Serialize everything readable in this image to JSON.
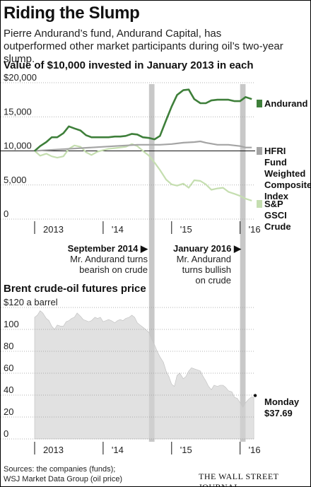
{
  "title": "Riding the Slump",
  "subtitle": "Pierre Andurand’s fund, Andurand Capital, has outperformed other market participants during oil’s two-year slump.",
  "source": [
    "Sources: the companies (funds);",
    "WSJ Market Data Group (oil price)"
  ],
  "brand": "THE WALL STREET JOURNAL.",
  "annotations": {
    "sept_2014": {
      "date": "September 2014",
      "marker": "▶",
      "lines": [
        "Mr. Andurand turns",
        "bearish on crude"
      ]
    },
    "jan_2016": {
      "date": "January 2016",
      "marker": "▶",
      "lines": [
        "Mr. Andurand",
        "turns bullish",
        "on crude"
      ]
    },
    "brent_end": {
      "lines": [
        "Monday",
        "$37.69"
      ]
    }
  },
  "colors": {
    "andurand": "#3e7f3a",
    "hfri": "#a4a4a4",
    "sp_gsci": "#c5deb0",
    "brent_fill": "#dcdcdc",
    "shade": "#c8c8c8"
  },
  "chart_data": [
    {
      "type": "line",
      "title": "Value of $10,000 invested in January 2013 in each",
      "ylim": [
        0,
        20000
      ],
      "yticks": [
        0,
        5000,
        10000,
        15000,
        20000
      ],
      "ytick_labels": [
        "0",
        "5,000",
        "10,000",
        "15,000",
        "$20,000"
      ],
      "xlim": [
        2013.0,
        2016.22
      ],
      "xtick_labels": [
        "2013",
        "'14",
        "'15",
        "'16"
      ],
      "xtick_values": [
        2013,
        2014,
        2015,
        2016
      ],
      "reference_line": 10000,
      "shaded_periods": [
        [
          2014.67,
          2014.75
        ],
        [
          2016.0,
          2016.08
        ]
      ],
      "series": [
        {
          "name": "Andurand",
          "color": "#3e7f3a",
          "points": [
            [
              2013.0,
              10000
            ],
            [
              2013.08,
              10700
            ],
            [
              2013.17,
              11300
            ],
            [
              2013.25,
              12000
            ],
            [
              2013.33,
              12000
            ],
            [
              2013.42,
              12600
            ],
            [
              2013.5,
              13600
            ],
            [
              2013.58,
              13300
            ],
            [
              2013.67,
              13000
            ],
            [
              2013.75,
              12300
            ],
            [
              2013.83,
              12000
            ],
            [
              2013.92,
              12000
            ],
            [
              2014.0,
              12000
            ],
            [
              2014.08,
              12000
            ],
            [
              2014.17,
              12100
            ],
            [
              2014.25,
              12100
            ],
            [
              2014.33,
              12200
            ],
            [
              2014.42,
              12500
            ],
            [
              2014.5,
              12400
            ],
            [
              2014.58,
              12000
            ],
            [
              2014.67,
              11900
            ],
            [
              2014.75,
              11700
            ],
            [
              2014.83,
              12200
            ],
            [
              2014.92,
              14500
            ],
            [
              2015.0,
              16500
            ],
            [
              2015.08,
              18200
            ],
            [
              2015.17,
              18900
            ],
            [
              2015.25,
              19000
            ],
            [
              2015.33,
              17600
            ],
            [
              2015.42,
              17000
            ],
            [
              2015.5,
              17000
            ],
            [
              2015.58,
              17400
            ],
            [
              2015.67,
              17500
            ],
            [
              2015.75,
              17500
            ],
            [
              2015.83,
              17500
            ],
            [
              2015.92,
              17300
            ],
            [
              2016.0,
              17300
            ],
            [
              2016.08,
              17900
            ],
            [
              2016.17,
              17600
            ]
          ]
        },
        {
          "name": "HFRI Fund Weighted Composite Index",
          "color": "#a4a4a4",
          "points": [
            [
              2013.0,
              10000
            ],
            [
              2013.17,
              10100
            ],
            [
              2013.33,
              10200
            ],
            [
              2013.5,
              10300
            ],
            [
              2013.67,
              10400
            ],
            [
              2013.83,
              10500
            ],
            [
              2014.0,
              10600
            ],
            [
              2014.17,
              10700
            ],
            [
              2014.33,
              10800
            ],
            [
              2014.5,
              10900
            ],
            [
              2014.67,
              10900
            ],
            [
              2014.83,
              10900
            ],
            [
              2015.0,
              11000
            ],
            [
              2015.17,
              11200
            ],
            [
              2015.33,
              11300
            ],
            [
              2015.42,
              11400
            ],
            [
              2015.5,
              11200
            ],
            [
              2015.67,
              10900
            ],
            [
              2015.83,
              10900
            ],
            [
              2016.0,
              10700
            ],
            [
              2016.08,
              10500
            ],
            [
              2016.17,
              10500
            ]
          ]
        },
        {
          "name": "S&P GSCI Crude",
          "color": "#c5deb0",
          "points": [
            [
              2013.0,
              10000
            ],
            [
              2013.08,
              9300
            ],
            [
              2013.17,
              9600
            ],
            [
              2013.25,
              9200
            ],
            [
              2013.33,
              9000
            ],
            [
              2013.42,
              9200
            ],
            [
              2013.5,
              10300
            ],
            [
              2013.58,
              10800
            ],
            [
              2013.67,
              10600
            ],
            [
              2013.75,
              9800
            ],
            [
              2013.83,
              9400
            ],
            [
              2013.92,
              9900
            ],
            [
              2014.0,
              10100
            ],
            [
              2014.08,
              10300
            ],
            [
              2014.17,
              10400
            ],
            [
              2014.25,
              10500
            ],
            [
              2014.33,
              10600
            ],
            [
              2014.42,
              11000
            ],
            [
              2014.5,
              10700
            ],
            [
              2014.58,
              10000
            ],
            [
              2014.67,
              9300
            ],
            [
              2014.75,
              8300
            ],
            [
              2014.83,
              7200
            ],
            [
              2014.92,
              5800
            ],
            [
              2015.0,
              5100
            ],
            [
              2015.08,
              4900
            ],
            [
              2015.17,
              5200
            ],
            [
              2015.25,
              4600
            ],
            [
              2015.33,
              5700
            ],
            [
              2015.42,
              5600
            ],
            [
              2015.5,
              5100
            ],
            [
              2015.58,
              4300
            ],
            [
              2015.67,
              4500
            ],
            [
              2015.75,
              4600
            ],
            [
              2015.83,
              4000
            ],
            [
              2015.92,
              3700
            ],
            [
              2016.0,
              3400
            ],
            [
              2016.08,
              3000
            ],
            [
              2016.17,
              2700
            ]
          ]
        }
      ]
    },
    {
      "type": "area",
      "title": "Brent crude-oil futures price",
      "ylim": [
        0,
        120
      ],
      "yticks": [
        0,
        20,
        40,
        60,
        80,
        100,
        120
      ],
      "ytick_labels": [
        "0",
        "20",
        "40",
        "60",
        "80",
        "100",
        "$120 a barrel"
      ],
      "xlim": [
        2013.0,
        2016.22
      ],
      "xtick_labels": [
        "2013",
        "'14",
        "'15",
        "'16"
      ],
      "xtick_values": [
        2013,
        2014,
        2015,
        2016
      ],
      "shaded_periods": [
        [
          2014.67,
          2014.75
        ],
        [
          2016.0,
          2016.08
        ]
      ],
      "series": [
        {
          "name": "Brent",
          "color": "#dcdcdc",
          "points": [
            [
              2013.0,
              111
            ],
            [
              2013.04,
              113
            ],
            [
              2013.08,
              117
            ],
            [
              2013.12,
              115
            ],
            [
              2013.17,
              110
            ],
            [
              2013.21,
              108
            ],
            [
              2013.25,
              103
            ],
            [
              2013.29,
              100
            ],
            [
              2013.33,
              104
            ],
            [
              2013.38,
              103
            ],
            [
              2013.42,
              103
            ],
            [
              2013.46,
              107
            ],
            [
              2013.5,
              108
            ],
            [
              2013.54,
              110
            ],
            [
              2013.58,
              111
            ],
            [
              2013.62,
              115
            ],
            [
              2013.67,
              112
            ],
            [
              2013.71,
              109
            ],
            [
              2013.75,
              108
            ],
            [
              2013.79,
              107
            ],
            [
              2013.83,
              108
            ],
            [
              2013.88,
              111
            ],
            [
              2013.92,
              110
            ],
            [
              2013.96,
              111
            ],
            [
              2014.0,
              107
            ],
            [
              2014.04,
              108
            ],
            [
              2014.08,
              109
            ],
            [
              2014.12,
              108
            ],
            [
              2014.17,
              106
            ],
            [
              2014.21,
              108
            ],
            [
              2014.25,
              109
            ],
            [
              2014.29,
              108
            ],
            [
              2014.33,
              110
            ],
            [
              2014.38,
              111
            ],
            [
              2014.42,
              113
            ],
            [
              2014.46,
              111
            ],
            [
              2014.5,
              106
            ],
            [
              2014.54,
              104
            ],
            [
              2014.58,
              102
            ],
            [
              2014.62,
              100
            ],
            [
              2014.67,
              97
            ],
            [
              2014.71,
              91
            ],
            [
              2014.75,
              86
            ],
            [
              2014.79,
              80
            ],
            [
              2014.83,
              75
            ],
            [
              2014.88,
              70
            ],
            [
              2014.92,
              62
            ],
            [
              2014.96,
              57
            ],
            [
              2015.0,
              50
            ],
            [
              2015.04,
              48
            ],
            [
              2015.08,
              58
            ],
            [
              2015.12,
              60
            ],
            [
              2015.17,
              55
            ],
            [
              2015.21,
              57
            ],
            [
              2015.25,
              62
            ],
            [
              2015.29,
              65
            ],
            [
              2015.33,
              64
            ],
            [
              2015.38,
              63
            ],
            [
              2015.42,
              62
            ],
            [
              2015.46,
              57
            ],
            [
              2015.5,
              53
            ],
            [
              2015.54,
              48
            ],
            [
              2015.58,
              45
            ],
            [
              2015.62,
              49
            ],
            [
              2015.67,
              48
            ],
            [
              2015.71,
              49
            ],
            [
              2015.75,
              49
            ],
            [
              2015.79,
              47
            ],
            [
              2015.83,
              44
            ],
            [
              2015.88,
              43
            ],
            [
              2015.92,
              38
            ],
            [
              2015.96,
              37
            ],
            [
              2016.0,
              33
            ],
            [
              2016.04,
              29
            ],
            [
              2016.08,
              33
            ],
            [
              2016.12,
              36
            ],
            [
              2016.17,
              38.5
            ],
            [
              2016.2,
              37.69
            ]
          ]
        }
      ]
    }
  ]
}
